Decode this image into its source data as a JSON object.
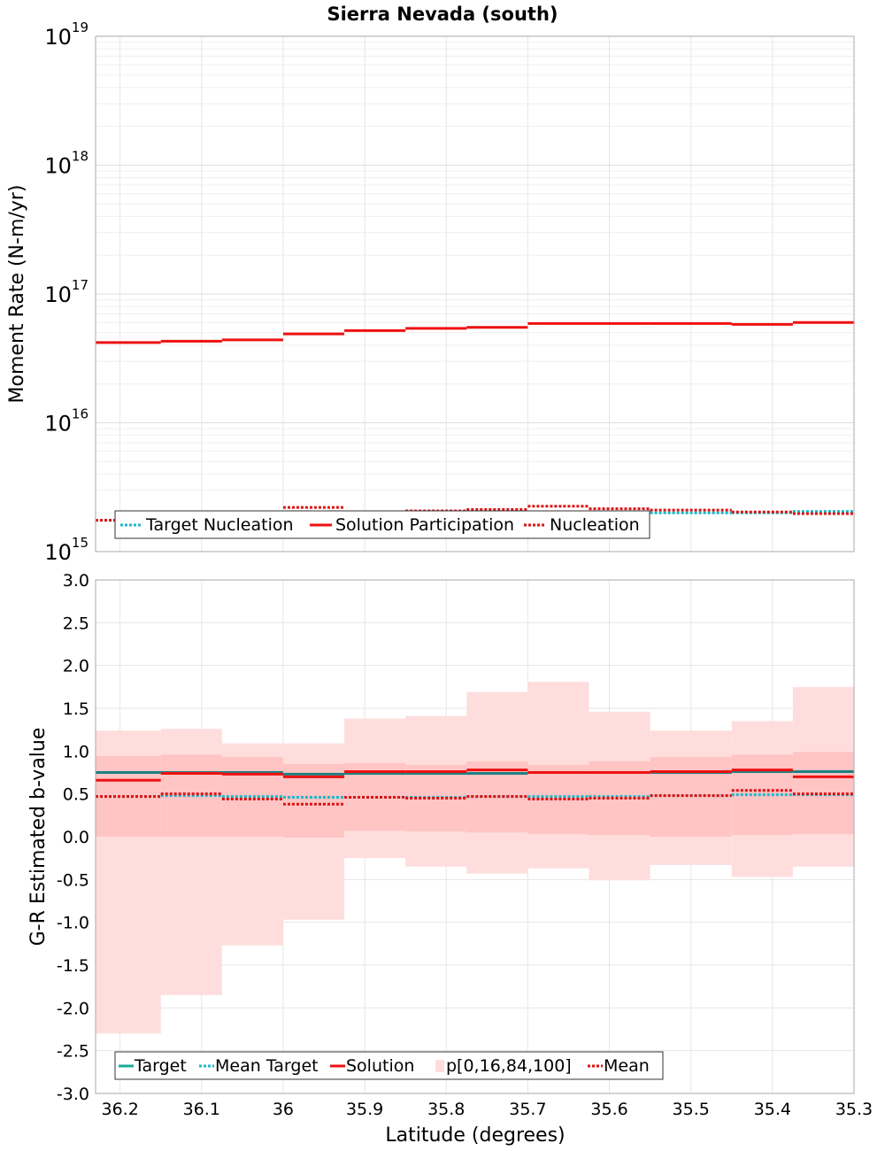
{
  "title": "Sierra Nevada (south)",
  "xlabel": "Latitude (degrees)",
  "x_ticks": [
    "36.2",
    "36.1",
    "36",
    "35.9",
    "35.8",
    "35.7",
    "35.6",
    "35.5",
    "35.4",
    "35.3"
  ],
  "colors": {
    "target": "#1aaa99",
    "target_dark": "#1f7f80",
    "solution": "#ee1111",
    "band_outer": "#ffdddd",
    "band_inner": "#ffc4c4",
    "mean_target": "#1ab8c8",
    "nucleation": "#dd1111"
  },
  "chart_data": [
    {
      "type": "line",
      "title": "Sierra Nevada (south)",
      "ylabel": "Moment Rate (N-m/yr)",
      "yscale": "log",
      "ylim": [
        1000000000000000.0,
        1e+19
      ],
      "xlim": [
        36.23,
        35.3
      ],
      "y_tick_base": "10",
      "y_tick_exponents": [
        "15",
        "16",
        "17",
        "18",
        "19"
      ],
      "bin_edges": [
        36.23,
        36.15,
        36.075,
        36.0,
        35.925,
        35.85,
        35.775,
        35.7,
        35.625,
        35.55,
        35.45,
        35.375,
        35.3
      ],
      "grid": true,
      "legend_position": "bottom-left",
      "series": [
        {
          "name": "Target Nucleation",
          "style": "dotted",
          "color": "#1ab8c8",
          "values": [
            1750000000000000.0,
            1800000000000000.0,
            1820000000000000.0,
            1850000000000000.0,
            1870000000000000.0,
            1900000000000000.0,
            1950000000000000.0,
            1950000000000000.0,
            1970000000000000.0,
            2000000000000000.0,
            2000000000000000.0,
            2050000000000000.0
          ]
        },
        {
          "name": "Solution Participation",
          "style": "solid",
          "color": "#ee1111",
          "values": [
            4.2e+16,
            4.3e+16,
            4.4e+16,
            4.9e+16,
            5.2e+16,
            5.4e+16,
            5.5e+16,
            5.9e+16,
            5.9e+16,
            5.9e+16,
            5.8e+16,
            6e+16
          ]
        },
        {
          "name": "Nucleation",
          "style": "dotted",
          "color": "#dd1111",
          "values": [
            1750000000000000.0,
            1850000000000000.0,
            1900000000000000.0,
            2200000000000000.0,
            1950000000000000.0,
            2070000000000000.0,
            2120000000000000.0,
            2250000000000000.0,
            2150000000000000.0,
            2100000000000000.0,
            2030000000000000.0,
            1970000000000000.0
          ]
        }
      ]
    },
    {
      "type": "line",
      "ylabel": "G-R Estimated b-value",
      "ylim": [
        -3.0,
        3.0
      ],
      "xlim": [
        36.23,
        35.3
      ],
      "y_ticks": [
        "-3.0",
        "-2.5",
        "-2.0",
        "-1.5",
        "-1.0",
        "-0.5",
        "0.0",
        "0.5",
        "1.0",
        "1.5",
        "2.0",
        "2.5",
        "3.0"
      ],
      "bin_edges": [
        36.23,
        36.15,
        36.075,
        36.0,
        35.925,
        35.85,
        35.775,
        35.7,
        35.625,
        35.55,
        35.45,
        35.375,
        35.3
      ],
      "grid": true,
      "legend_position": "bottom-left",
      "series": [
        {
          "name": "Target",
          "style": "solid",
          "color": "#1aaa99",
          "values": [
            0.75,
            0.75,
            0.75,
            0.73,
            0.74,
            0.74,
            0.74,
            0.75,
            0.75,
            0.75,
            0.76,
            0.76
          ]
        },
        {
          "name": "Mean Target",
          "style": "dotted",
          "color": "#1ab8c8",
          "values": [
            0.47,
            0.48,
            0.47,
            0.46,
            0.46,
            0.46,
            0.47,
            0.47,
            0.47,
            0.48,
            0.49,
            0.49
          ]
        },
        {
          "name": "Solution",
          "style": "solid",
          "color": "#ee1111",
          "values": [
            0.66,
            0.74,
            0.73,
            0.7,
            0.76,
            0.76,
            0.78,
            0.75,
            0.75,
            0.76,
            0.78,
            0.7
          ]
        },
        {
          "name": "p[0,16,84,100]",
          "style": "band",
          "p0": [
            -2.3,
            -1.85,
            -1.27,
            -0.97,
            -0.25,
            -0.35,
            -0.43,
            -0.37,
            -0.51,
            -0.33,
            -0.47,
            -0.35,
            -0.48
          ],
          "p16": [
            0.0,
            0.0,
            0.0,
            -0.01,
            0.07,
            0.06,
            0.05,
            0.03,
            0.02,
            0.0,
            0.02,
            0.03,
            0.0
          ],
          "p84": [
            0.94,
            0.96,
            0.93,
            0.85,
            0.86,
            0.84,
            0.88,
            0.84,
            0.88,
            0.93,
            0.96,
            0.99,
            0.97
          ],
          "p100": [
            1.24,
            1.26,
            1.09,
            1.09,
            1.38,
            1.41,
            1.69,
            1.81,
            1.46,
            1.24,
            1.35,
            1.75,
            1.79
          ]
        },
        {
          "name": "Mean",
          "style": "dotted",
          "color": "#dd1111",
          "values": [
            0.47,
            0.5,
            0.44,
            0.38,
            0.46,
            0.45,
            0.47,
            0.44,
            0.45,
            0.48,
            0.54,
            0.5
          ]
        }
      ]
    }
  ]
}
